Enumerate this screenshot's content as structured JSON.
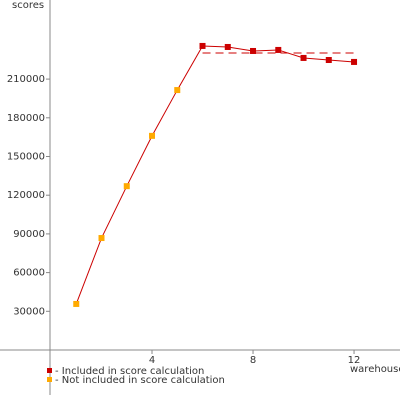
{
  "chart_data": {
    "type": "line",
    "y_label": "scores",
    "x_label": "warehouses",
    "xlim": [
      0,
      13.8
    ],
    "xticks": [
      4,
      8,
      12
    ],
    "ylim": [
      0,
      270000
    ],
    "yticks": [
      30000,
      60000,
      90000,
      120000,
      150000,
      180000,
      210000
    ],
    "line_color": "#cc0000",
    "series": [
      {
        "name": "- Included in score calculation",
        "color": "#cc0000",
        "x": [
          6,
          7,
          8,
          9,
          10,
          11,
          12
        ],
        "values": [
          235700,
          234900,
          231800,
          232600,
          226400,
          224800,
          223300
        ]
      },
      {
        "name": "- Not included in score calculation",
        "color": "#ffaa00",
        "x": [
          1,
          2,
          3,
          4,
          5
        ],
        "values": [
          35700,
          86800,
          127000,
          166000,
          201500
        ]
      }
    ],
    "score_line": {
      "value": 230200,
      "x": [
        6,
        12
      ]
    }
  }
}
